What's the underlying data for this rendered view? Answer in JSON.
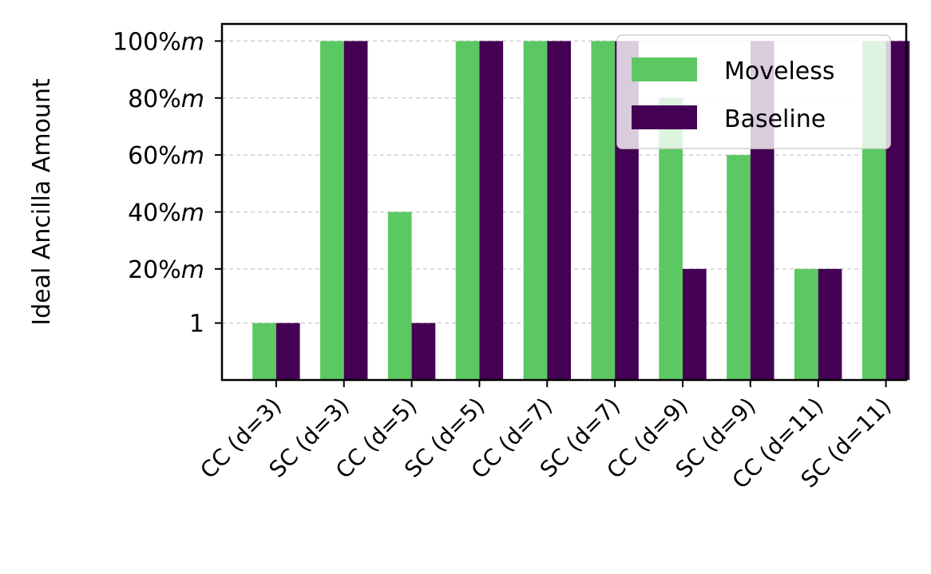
{
  "chart_data": {
    "type": "bar",
    "categories": [
      "CC (d=3)",
      "SC (d=3)",
      "CC (d=5)",
      "SC (d=5)",
      "CC (d=7)",
      "SC (d=7)",
      "CC (d=9)",
      "SC (d=9)",
      "CC (d=11)",
      "SC (d=11)"
    ],
    "series": [
      {
        "name": "Moveless",
        "color": "#5cc863",
        "values": [
          1,
          100,
          40,
          100,
          100,
          100,
          80,
          60,
          20,
          100
        ]
      },
      {
        "name": "Baseline",
        "color": "#440154",
        "values": [
          1,
          100,
          1,
          100,
          100,
          100,
          20,
          100,
          20,
          100
        ]
      }
    ],
    "ylabel": "Ideal Ancilla Amount",
    "xlabel": "",
    "yticks": [
      {
        "value": 1,
        "label": "1",
        "suffix": ""
      },
      {
        "value": 20,
        "label": "20%",
        "suffix": "m"
      },
      {
        "value": 40,
        "label": "40%",
        "suffix": "m"
      },
      {
        "value": 60,
        "label": "60%",
        "suffix": "m"
      },
      {
        "value": 80,
        "label": "80%",
        "suffix": "m"
      },
      {
        "value": 100,
        "label": "100%",
        "suffix": "m"
      }
    ],
    "ylim": [
      -19,
      106
    ],
    "grid": "y-dashed",
    "legend": "top-right"
  }
}
